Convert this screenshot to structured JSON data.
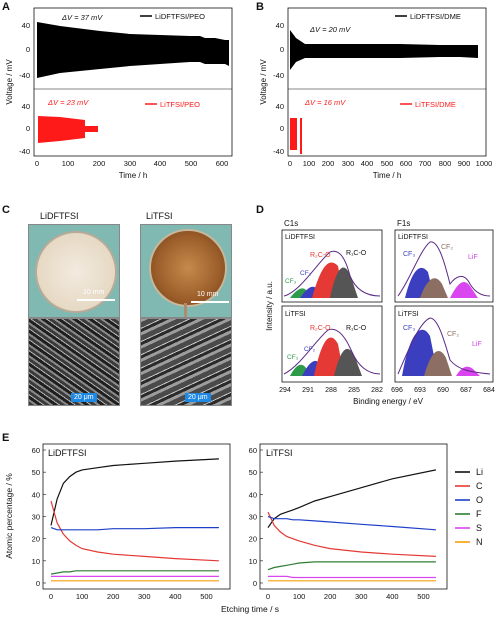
{
  "panels": {
    "A": {
      "label": "A",
      "top": {
        "legend": "LiDFTFSI/PEO",
        "dv": "ΔV = 37 mV"
      },
      "bottom": {
        "legend": "LiTFSI/PEO",
        "dv": "ΔV = 23 mV"
      },
      "xlabel": "Time / h",
      "ylabel": "Voltage / mV",
      "xticks": [
        "0",
        "100",
        "200",
        "300",
        "400",
        "500",
        "600"
      ],
      "yticks": [
        "40",
        "0",
        "-40",
        "40",
        "0",
        "-40"
      ]
    },
    "B": {
      "label": "B",
      "top": {
        "legend": "LiDFTFSI/DME",
        "dv": "ΔV = 20 mV"
      },
      "bottom": {
        "legend": "LiTFSI/DME",
        "dv": "ΔV = 16 mV"
      },
      "xlabel": "Time / h",
      "ylabel": "Voltage / mV",
      "xticks": [
        "0",
        "100",
        "200",
        "300",
        "400",
        "500",
        "600",
        "700",
        "800",
        "900",
        "1000"
      ],
      "yticks": [
        "40",
        "0",
        "-40",
        "40",
        "0",
        "-40"
      ]
    },
    "C": {
      "label": "C",
      "left_title": "LiDFTFSI",
      "right_title": "LiTFSI",
      "scale_photo": "10 mm",
      "scale_sem": "20 μm"
    },
    "D": {
      "label": "D",
      "c1s": "C1s",
      "f1s": "F1s",
      "ylabel": "Intensity / a.u.",
      "xlabel": "Binding energy / eV",
      "top_tag": "LiDFTFSI",
      "bottom_tag": "LiTFSI",
      "c_ticks": [
        "294",
        "291",
        "288",
        "285",
        "282"
      ],
      "f_ticks": [
        "696",
        "693",
        "690",
        "687",
        "684"
      ],
      "c_labels_top": [
        "R₁C-O",
        "R₂C-O",
        "CF₂",
        "CF₃"
      ],
      "f_labels_top": [
        "CF₃",
        "CF₂",
        "LiF"
      ],
      "c_labels_bot": [
        "R₂C-O",
        "R₁C-O",
        "CF₃",
        "CF₂"
      ],
      "f_labels_bot": [
        "CF₃",
        "CF₂",
        "LiF"
      ]
    },
    "E": {
      "label": "E",
      "left_title": "LiDFTFSI",
      "right_title": "LiTFSI",
      "ylabel": "Atomic percentage / %",
      "xlabel": "Etching time / s",
      "yticks": [
        "0",
        "10",
        "20",
        "30",
        "40",
        "50",
        "60"
      ],
      "xticks": [
        "0",
        "100",
        "200",
        "300",
        "400",
        "500"
      ],
      "legend": [
        {
          "name": "Li",
          "color": "#111111"
        },
        {
          "name": "C",
          "color": "#e53935"
        },
        {
          "name": "O",
          "color": "#1e40c8"
        },
        {
          "name": "F",
          "color": "#2e7d32"
        },
        {
          "name": "S",
          "color": "#d946ef"
        },
        {
          "name": "N",
          "color": "#f59e0b"
        }
      ]
    }
  },
  "chart_data": [
    {
      "type": "line",
      "panel": "E-left",
      "title": "LiDFTFSI",
      "xlabel": "Etching time / s",
      "ylabel": "Atomic percentage / %",
      "xlim": [
        0,
        550
      ],
      "ylim": [
        0,
        60
      ],
      "x": [
        0,
        20,
        40,
        60,
        80,
        100,
        150,
        200,
        300,
        400,
        540
      ],
      "series": [
        {
          "name": "Li",
          "values": [
            26,
            38,
            45,
            48,
            50,
            51,
            52,
            53,
            54,
            55,
            56
          ]
        },
        {
          "name": "C",
          "values": [
            37,
            27,
            22,
            19,
            17,
            15.5,
            14,
            13,
            12,
            11,
            10
          ]
        },
        {
          "name": "O",
          "values": [
            25,
            24,
            24,
            24,
            24,
            24,
            24,
            24.5,
            24.5,
            25,
            25
          ]
        },
        {
          "name": "F",
          "values": [
            4,
            4.5,
            5,
            5,
            5.5,
            5.5,
            5.5,
            5.5,
            5.5,
            5.5,
            5.5
          ]
        },
        {
          "name": "S",
          "values": [
            3,
            3,
            3,
            3,
            3,
            3,
            3,
            3,
            3,
            3,
            3
          ]
        },
        {
          "name": "N",
          "values": [
            1,
            1,
            1,
            1,
            1,
            1,
            1,
            1,
            1,
            1,
            1
          ]
        }
      ]
    },
    {
      "type": "line",
      "panel": "E-right",
      "title": "LiTFSI",
      "xlabel": "Etching time / s",
      "ylabel": "Atomic percentage / %",
      "xlim": [
        0,
        550
      ],
      "ylim": [
        0,
        60
      ],
      "x": [
        0,
        20,
        40,
        60,
        80,
        100,
        150,
        200,
        300,
        400,
        540
      ],
      "series": [
        {
          "name": "Li",
          "values": [
            25,
            29,
            31,
            32,
            33,
            34,
            37,
            39,
            43,
            47,
            51
          ]
        },
        {
          "name": "C",
          "values": [
            32,
            26,
            23,
            21,
            20,
            19,
            17,
            15.5,
            14,
            13,
            12
          ]
        },
        {
          "name": "O",
          "values": [
            30,
            29,
            29,
            29,
            28.5,
            28.5,
            28,
            27.5,
            26.5,
            25.5,
            24
          ]
        },
        {
          "name": "F",
          "values": [
            6,
            7,
            7.5,
            8,
            8.5,
            9,
            9.5,
            9.5,
            9.5,
            9.5,
            9.5
          ]
        },
        {
          "name": "S",
          "values": [
            3,
            3,
            3,
            3,
            2.5,
            2.5,
            2.5,
            2.5,
            2.5,
            2.5,
            2.5
          ]
        },
        {
          "name": "N",
          "values": [
            1,
            1,
            1,
            1,
            1,
            1,
            1,
            1,
            1,
            1,
            1
          ]
        }
      ]
    }
  ]
}
